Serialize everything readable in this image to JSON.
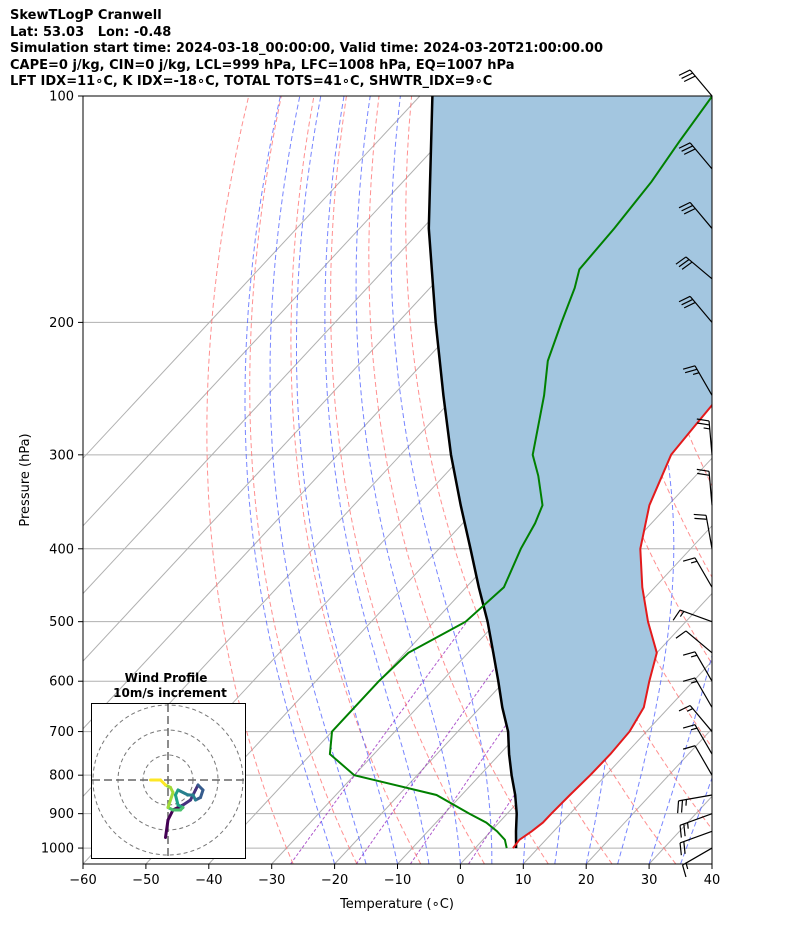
{
  "header": {
    "line1": "SkewTLogP Cranwell",
    "line2": "Lat: 53.03   Lon: -0.48",
    "line3": "Simulation start time: 2024-03-18_00:00:00, Valid time: 2024-03-20T21:00:00.00",
    "line4": "CAPE=0 j/kg, CIN=0 j/kg, LCL=999 hPa, LFC=1008 hPa, EQ=1007 hPa",
    "line5": "LFT IDX=11∘C, K IDX=-18∘C, TOTAL TOTS=41∘C, SHWTR_IDX=9∘C"
  },
  "chart_data": {
    "type": "skewt_logp",
    "xlabel": "Temperature (∘C)",
    "ylabel": "Pressure (hPa)",
    "xlim": [
      -60,
      40
    ],
    "ylim": [
      1050,
      100
    ],
    "x_ticks": [
      -60,
      -50,
      -40,
      -30,
      -20,
      -10,
      0,
      10,
      20,
      30,
      40
    ],
    "x_tick_labels": [
      "−60",
      "−50",
      "−40",
      "−30",
      "−20",
      "−10",
      "0",
      "10",
      "20",
      "30",
      "40"
    ],
    "y_ticks": [
      1000,
      900,
      800,
      700,
      600,
      500,
      400,
      300,
      200,
      100
    ],
    "y_tick_labels": [
      "1000",
      "900",
      "800",
      "700",
      "600",
      "500",
      "400",
      "300",
      "200",
      "100"
    ],
    "grid": true,
    "colors": {
      "temperature": "#e31a1c",
      "dewpoint": "#008000",
      "parcel": "#000000",
      "shade": "#a3c6e0",
      "dry_adiabat": "#ff6b6b",
      "moist_adiabat": "#4a5cff",
      "mixing_ratio": "#9b30c0",
      "isotherm": "#b0b0b0"
    },
    "temperature_profile": [
      {
        "p": 1000,
        "t": 6.0
      },
      {
        "p": 975,
        "t": 5.8
      },
      {
        "p": 950,
        "t": 6.5
      },
      {
        "p": 925,
        "t": 7.0
      },
      {
        "p": 900,
        "t": 7.0
      },
      {
        "p": 850,
        "t": 7.2
      },
      {
        "p": 800,
        "t": 7.5
      },
      {
        "p": 750,
        "t": 7.6
      },
      {
        "p": 700,
        "t": 7.3
      },
      {
        "p": 650,
        "t": 6.0
      },
      {
        "p": 600,
        "t": 3.0
      },
      {
        "p": 550,
        "t": 0.0
      },
      {
        "p": 500,
        "t": -6.0
      },
      {
        "p": 450,
        "t": -12.0
      },
      {
        "p": 400,
        "t": -18.0
      },
      {
        "p": 350,
        "t": -23.0
      },
      {
        "p": 300,
        "t": -27.0
      },
      {
        "p": 275,
        "t": -27.5
      },
      {
        "p": 250,
        "t": -28.0
      },
      {
        "p": 225,
        "t": -29.0
      },
      {
        "p": 200,
        "t": -32.0
      },
      {
        "p": 175,
        "t": -36.0
      },
      {
        "p": 150,
        "t": -41.0
      },
      {
        "p": 125,
        "t": -47.0
      },
      {
        "p": 100,
        "t": -56.0
      }
    ],
    "dewpoint_profile": [
      {
        "p": 1000,
        "t": 5.0
      },
      {
        "p": 975,
        "t": 3.5
      },
      {
        "p": 950,
        "t": 1.0
      },
      {
        "p": 925,
        "t": -2.0
      },
      {
        "p": 900,
        "t": -6.0
      },
      {
        "p": 850,
        "t": -14.0
      },
      {
        "p": 800,
        "t": -30.0
      },
      {
        "p": 750,
        "t": -37.0
      },
      {
        "p": 700,
        "t": -40.0
      },
      {
        "p": 600,
        "t": -40.0
      },
      {
        "p": 550,
        "t": -39.5
      },
      {
        "p": 500,
        "t": -35.0
      },
      {
        "p": 450,
        "t": -34.0
      },
      {
        "p": 400,
        "t": -37.0
      },
      {
        "p": 370,
        "t": -38.5
      },
      {
        "p": 350,
        "t": -40.0
      },
      {
        "p": 320,
        "t": -45.0
      },
      {
        "p": 300,
        "t": -49.0
      },
      {
        "p": 250,
        "t": -56.0
      },
      {
        "p": 225,
        "t": -60.5
      },
      {
        "p": 200,
        "t": -64.0
      },
      {
        "p": 180,
        "t": -67.0
      },
      {
        "p": 170,
        "t": -69.0
      },
      {
        "p": 150,
        "t": -69.5
      },
      {
        "p": 130,
        "t": -70.5
      },
      {
        "p": 115,
        "t": -72.0
      },
      {
        "p": 100,
        "t": -73.5
      }
    ],
    "parcel_profile": [
      {
        "p": 1000,
        "t": 6.5
      },
      {
        "p": 950,
        "t": 4.0
      },
      {
        "p": 900,
        "t": 1.5
      },
      {
        "p": 850,
        "t": -1.5
      },
      {
        "p": 800,
        "t": -5.0
      },
      {
        "p": 750,
        "t": -8.5
      },
      {
        "p": 700,
        "t": -12.0
      },
      {
        "p": 650,
        "t": -16.5
      },
      {
        "p": 600,
        "t": -21.0
      },
      {
        "p": 550,
        "t": -26.0
      },
      {
        "p": 500,
        "t": -31.5
      },
      {
        "p": 450,
        "t": -38.0
      },
      {
        "p": 400,
        "t": -45.0
      },
      {
        "p": 350,
        "t": -53.0
      },
      {
        "p": 300,
        "t": -62.0
      },
      {
        "p": 250,
        "t": -72.0
      },
      {
        "p": 200,
        "t": -84.0
      },
      {
        "p": 150,
        "t": -99.0
      },
      {
        "p": 100,
        "t": -118.0
      }
    ],
    "wind_barbs": [
      {
        "p": 1000,
        "speed_kt": 15,
        "dir_deg": 240
      },
      {
        "p": 950,
        "speed_kt": 20,
        "dir_deg": 250
      },
      {
        "p": 900,
        "speed_kt": 25,
        "dir_deg": 250
      },
      {
        "p": 850,
        "speed_kt": 25,
        "dir_deg": 260
      },
      {
        "p": 800,
        "speed_kt": 10,
        "dir_deg": 330
      },
      {
        "p": 750,
        "speed_kt": 15,
        "dir_deg": 330
      },
      {
        "p": 700,
        "speed_kt": 15,
        "dir_deg": 320
      },
      {
        "p": 650,
        "speed_kt": 15,
        "dir_deg": 330
      },
      {
        "p": 600,
        "speed_kt": 15,
        "dir_deg": 330
      },
      {
        "p": 550,
        "speed_kt": 10,
        "dir_deg": 310
      },
      {
        "p": 500,
        "speed_kt": 15,
        "dir_deg": 290
      },
      {
        "p": 450,
        "speed_kt": 15,
        "dir_deg": 330
      },
      {
        "p": 400,
        "speed_kt": 20,
        "dir_deg": 350
      },
      {
        "p": 350,
        "speed_kt": 20,
        "dir_deg": 355
      },
      {
        "p": 300,
        "speed_kt": 25,
        "dir_deg": 355
      },
      {
        "p": 250,
        "speed_kt": 25,
        "dir_deg": 330
      },
      {
        "p": 200,
        "speed_kt": 30,
        "dir_deg": 320
      },
      {
        "p": 175,
        "speed_kt": 30,
        "dir_deg": 310
      },
      {
        "p": 150,
        "speed_kt": 30,
        "dir_deg": 320
      },
      {
        "p": 125,
        "speed_kt": 30,
        "dir_deg": 320
      },
      {
        "p": 100,
        "speed_kt": 30,
        "dir_deg": 320
      }
    ],
    "inset": {
      "title": "Wind Profile",
      "subtitle": "10m/s increment",
      "rings_ms": [
        10,
        20,
        30
      ],
      "hodograph": [
        {
          "u": -0.5,
          "v": -11.5
        },
        {
          "u": 0.0,
          "v": -8.0
        },
        {
          "u": 1.0,
          "v": -6.0
        },
        {
          "u": 3.0,
          "v": -5.0
        },
        {
          "u": 4.5,
          "v": -4.0
        },
        {
          "u": 5.5,
          "v": -2.0
        },
        {
          "u": 6.0,
          "v": -1.0
        },
        {
          "u": 7.0,
          "v": -2.0
        },
        {
          "u": 6.5,
          "v": -3.5
        },
        {
          "u": 5.5,
          "v": -4.0
        },
        {
          "u": 5.0,
          "v": -3.0
        },
        {
          "u": 4.0,
          "v": -3.0
        },
        {
          "u": 2.0,
          "v": -2.0
        },
        {
          "u": 1.5,
          "v": -3.0
        },
        {
          "u": 2.0,
          "v": -5.0
        },
        {
          "u": 3.0,
          "v": -5.5
        },
        {
          "u": 2.5,
          "v": -6.0
        },
        {
          "u": 1.0,
          "v": -6.0
        },
        {
          "u": 0.0,
          "v": -5.5
        },
        {
          "u": 1.0,
          "v": -2.5
        },
        {
          "u": 0.5,
          "v": -1.5
        },
        {
          "u": -0.5,
          "v": -1.0
        },
        {
          "u": -1.5,
          "v": 0.0
        },
        {
          "u": -3.5,
          "v": 0.0
        }
      ]
    }
  }
}
